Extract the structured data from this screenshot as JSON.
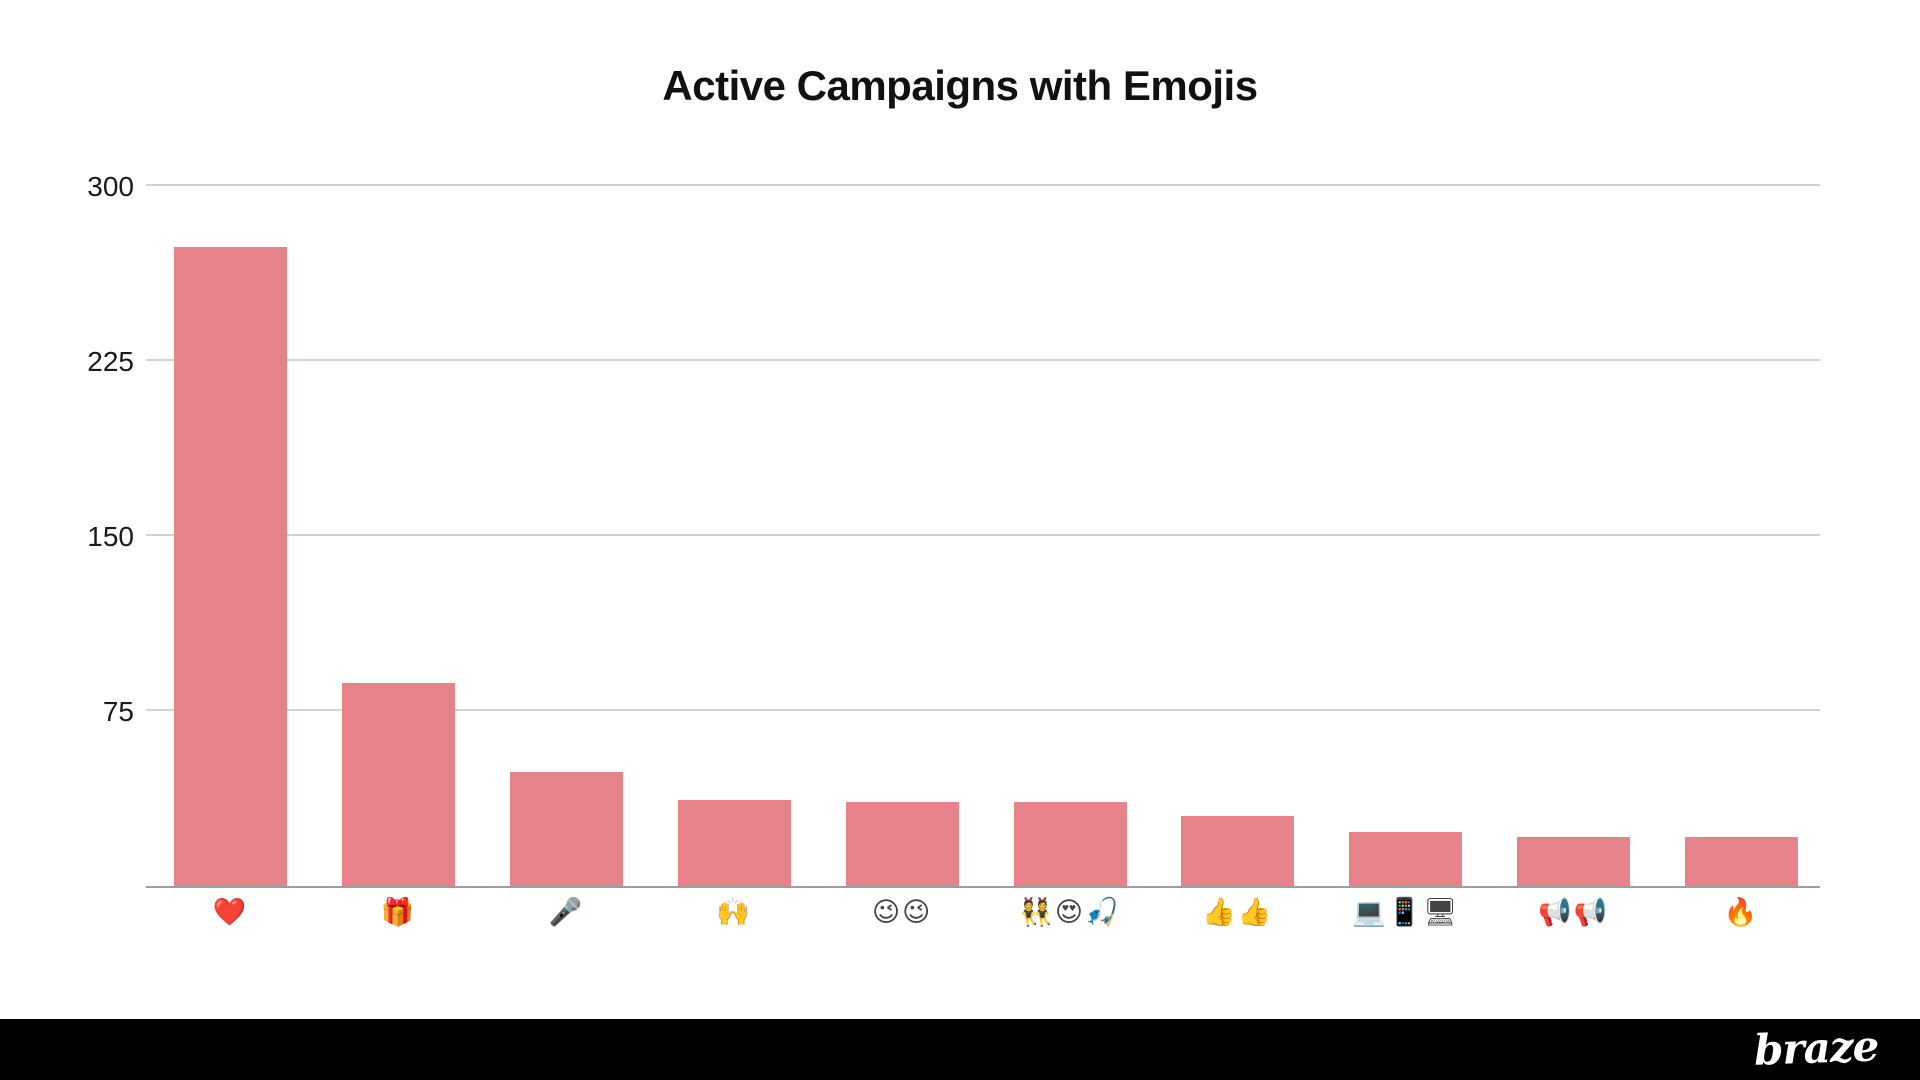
{
  "chart_data": {
    "type": "bar",
    "title": "Active Campaigns with Emojis",
    "categories": [
      "❤️",
      "🎁",
      "🎤",
      "🙌",
      "😉😉",
      "👯😍🎣",
      "👍👍",
      "💻📱🖥",
      "📢📢",
      "🔥"
    ],
    "category_icon_names": [
      "red-heart-icon",
      "gift-icon",
      "microphone-icon",
      "raising-hands-icon",
      "winking-face-pair-icon",
      "dancers-heart-eyes-fishing-icon",
      "double-thumbs-up-icon",
      "laptop-phone-desktop-icon",
      "double-loudspeaker-icon",
      "fire-icon"
    ],
    "values": [
      274,
      87,
      49,
      37,
      36,
      36,
      30,
      23,
      21,
      21
    ],
    "y_ticks": [
      300,
      225,
      150,
      75
    ],
    "ylim": [
      0,
      301
    ],
    "xlabel": "",
    "ylabel": "",
    "grid": "horizontal",
    "legend": "none",
    "colors": {
      "bar": "#e5828a",
      "gridline": "#d2d2d2",
      "axis_line": "#9e9e9e",
      "title_text": "#111111",
      "tick_text": "#1a1a1a",
      "background": "#ffffff",
      "footer_bg": "#000000",
      "logo_text": "#ffffff"
    }
  },
  "footer": {
    "logo_text": "braze"
  }
}
